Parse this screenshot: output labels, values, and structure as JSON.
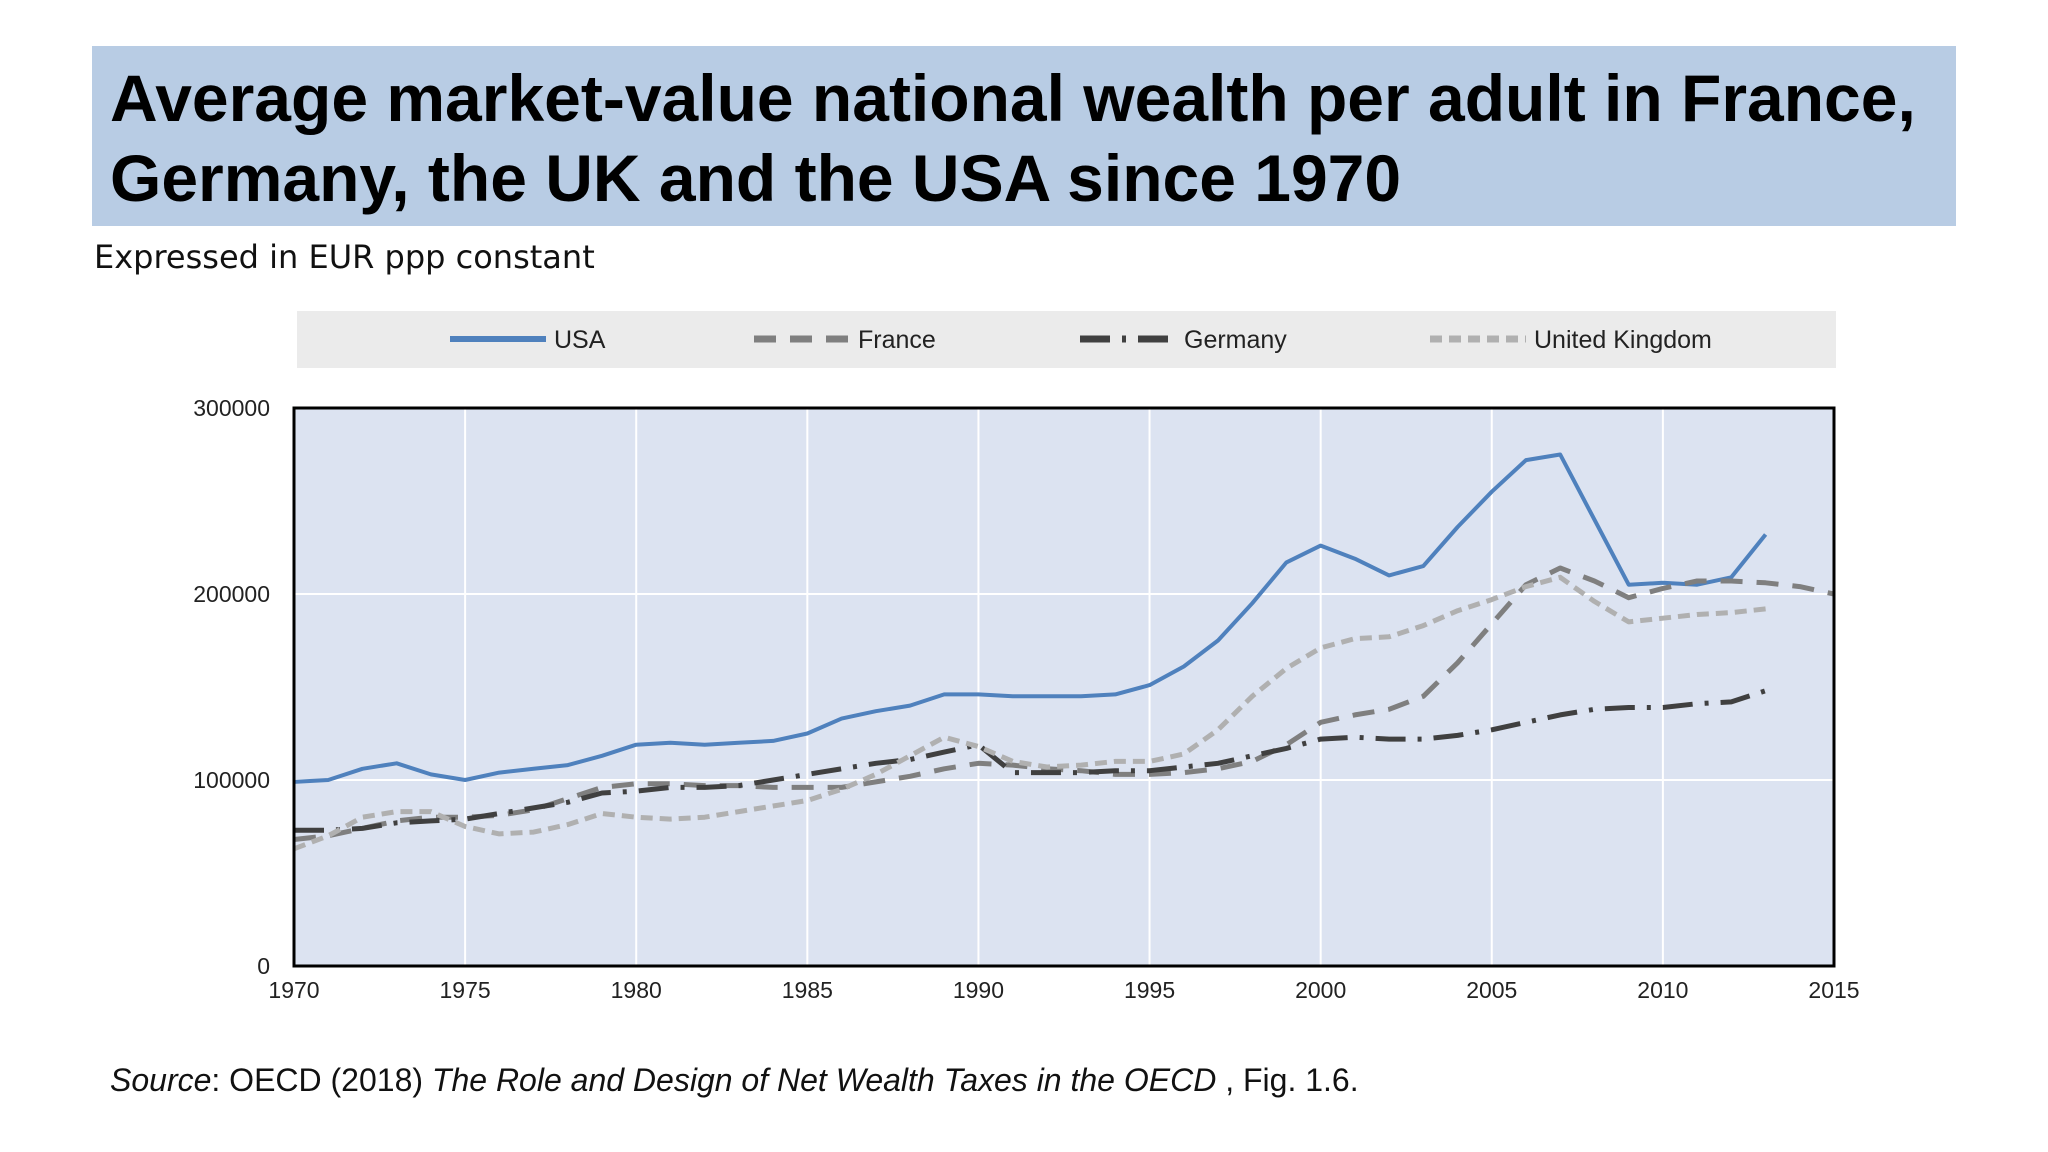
{
  "title": "Average market-value national wealth per adult in France, Germany, the UK and the USA since 1970",
  "subtitle": "Expressed in EUR ppp constant",
  "source": {
    "label": "Source",
    "text_1": ": OECD (2018) ",
    "publication": "The Role and Design of Net Wealth Taxes in the OECD",
    "text_2": " , Fig. 1.6."
  },
  "colors": {
    "title_bg": "#b8cce4",
    "plot_bg": "#dce3f1",
    "legend_bg": "#ebebeb",
    "usa": "#4f81bd",
    "france": "#7f7f7f",
    "germany": "#404040",
    "uk": "#b0b0b0"
  },
  "chart_data": {
    "type": "line",
    "title": "",
    "xlabel": "",
    "ylabel": "",
    "xlim": [
      1970,
      2015
    ],
    "ylim": [
      0,
      300000
    ],
    "x_ticks": [
      1970,
      1975,
      1980,
      1985,
      1990,
      1995,
      2000,
      2005,
      2010,
      2015
    ],
    "y_ticks": [
      0,
      100000,
      200000,
      300000
    ],
    "grid": true,
    "legend_position": "top",
    "series": [
      {
        "name": "USA",
        "style": "solid",
        "color": "#4f81bd",
        "points": [
          [
            1970,
            99000
          ],
          [
            1971,
            100000
          ],
          [
            1972,
            106000
          ],
          [
            1973,
            109000
          ],
          [
            1974,
            103000
          ],
          [
            1975,
            100000
          ],
          [
            1976,
            104000
          ],
          [
            1977,
            106000
          ],
          [
            1978,
            108000
          ],
          [
            1979,
            113000
          ],
          [
            1980,
            119000
          ],
          [
            1981,
            120000
          ],
          [
            1982,
            119000
          ],
          [
            1983,
            120000
          ],
          [
            1984,
            121000
          ],
          [
            1985,
            125000
          ],
          [
            1986,
            133000
          ],
          [
            1987,
            137000
          ],
          [
            1988,
            140000
          ],
          [
            1989,
            146000
          ],
          [
            1990,
            146000
          ],
          [
            1991,
            145000
          ],
          [
            1992,
            145000
          ],
          [
            1993,
            145000
          ],
          [
            1994,
            146000
          ],
          [
            1995,
            151000
          ],
          [
            1996,
            161000
          ],
          [
            1997,
            175000
          ],
          [
            1998,
            195000
          ],
          [
            1999,
            217000
          ],
          [
            2000,
            226000
          ],
          [
            2001,
            219000
          ],
          [
            2002,
            210000
          ],
          [
            2003,
            215000
          ],
          [
            2004,
            236000
          ],
          [
            2005,
            255000
          ],
          [
            2006,
            272000
          ],
          [
            2007,
            275000
          ],
          [
            2008,
            240000
          ],
          [
            2009,
            205000
          ],
          [
            2010,
            206000
          ],
          [
            2011,
            205000
          ],
          [
            2012,
            209000
          ],
          [
            2013,
            232000
          ]
        ]
      },
      {
        "name": "France",
        "style": "dashed",
        "color": "#7f7f7f",
        "points": [
          [
            1970,
            68000
          ],
          [
            1971,
            70000
          ],
          [
            1972,
            74000
          ],
          [
            1973,
            78000
          ],
          [
            1974,
            80000
          ],
          [
            1975,
            80000
          ],
          [
            1976,
            81000
          ],
          [
            1977,
            84000
          ],
          [
            1978,
            90000
          ],
          [
            1979,
            96000
          ],
          [
            1980,
            98000
          ],
          [
            1981,
            98000
          ],
          [
            1982,
            97000
          ],
          [
            1983,
            97000
          ],
          [
            1984,
            96000
          ],
          [
            1985,
            96000
          ],
          [
            1986,
            96000
          ],
          [
            1987,
            99000
          ],
          [
            1988,
            102000
          ],
          [
            1989,
            106000
          ],
          [
            1990,
            109000
          ],
          [
            1991,
            108000
          ],
          [
            1992,
            106000
          ],
          [
            1993,
            105000
          ],
          [
            1994,
            103000
          ],
          [
            1995,
            103000
          ],
          [
            1996,
            104000
          ],
          [
            1997,
            106000
          ],
          [
            1998,
            110000
          ],
          [
            1999,
            119000
          ],
          [
            2000,
            131000
          ],
          [
            2001,
            135000
          ],
          [
            2002,
            138000
          ],
          [
            2003,
            145000
          ],
          [
            2004,
            163000
          ],
          [
            2005,
            184000
          ],
          [
            2006,
            205000
          ],
          [
            2007,
            214000
          ],
          [
            2008,
            207000
          ],
          [
            2009,
            198000
          ],
          [
            2010,
            203000
          ],
          [
            2011,
            207000
          ],
          [
            2012,
            207000
          ],
          [
            2013,
            206000
          ],
          [
            2014,
            204000
          ],
          [
            2015,
            200000
          ]
        ]
      },
      {
        "name": "Germany",
        "style": "dashdot",
        "color": "#404040",
        "points": [
          [
            1970,
            73000
          ],
          [
            1971,
            73000
          ],
          [
            1972,
            74000
          ],
          [
            1973,
            77000
          ],
          [
            1974,
            78000
          ],
          [
            1975,
            79000
          ],
          [
            1976,
            82000
          ],
          [
            1977,
            85000
          ],
          [
            1978,
            88000
          ],
          [
            1979,
            93000
          ],
          [
            1980,
            94000
          ],
          [
            1981,
            96000
          ],
          [
            1982,
            96000
          ],
          [
            1983,
            97000
          ],
          [
            1984,
            100000
          ],
          [
            1985,
            103000
          ],
          [
            1986,
            106000
          ],
          [
            1987,
            109000
          ],
          [
            1988,
            111000
          ],
          [
            1989,
            115000
          ],
          [
            1990,
            119000
          ],
          [
            1991,
            104000
          ],
          [
            1992,
            104000
          ],
          [
            1993,
            104000
          ],
          [
            1994,
            105000
          ],
          [
            1995,
            105000
          ],
          [
            1996,
            107000
          ],
          [
            1997,
            109000
          ],
          [
            1998,
            113000
          ],
          [
            1999,
            117000
          ],
          [
            2000,
            122000
          ],
          [
            2001,
            123000
          ],
          [
            2002,
            122000
          ],
          [
            2003,
            122000
          ],
          [
            2004,
            124000
          ],
          [
            2005,
            127000
          ],
          [
            2006,
            131000
          ],
          [
            2007,
            135000
          ],
          [
            2008,
            138000
          ],
          [
            2009,
            139000
          ],
          [
            2010,
            139000
          ],
          [
            2011,
            141000
          ],
          [
            2012,
            142000
          ],
          [
            2013,
            148000
          ]
        ]
      },
      {
        "name": "United Kingdom",
        "style": "dotted",
        "color": "#b0b0b0",
        "points": [
          [
            1970,
            63000
          ],
          [
            1971,
            70000
          ],
          [
            1972,
            80000
          ],
          [
            1973,
            83000
          ],
          [
            1974,
            83000
          ],
          [
            1975,
            75000
          ],
          [
            1976,
            71000
          ],
          [
            1977,
            72000
          ],
          [
            1978,
            76000
          ],
          [
            1979,
            82000
          ],
          [
            1980,
            80000
          ],
          [
            1981,
            79000
          ],
          [
            1982,
            80000
          ],
          [
            1983,
            83000
          ],
          [
            1984,
            86000
          ],
          [
            1985,
            89000
          ],
          [
            1986,
            95000
          ],
          [
            1987,
            103000
          ],
          [
            1988,
            113000
          ],
          [
            1989,
            123000
          ],
          [
            1990,
            118000
          ],
          [
            1991,
            110000
          ],
          [
            1992,
            107000
          ],
          [
            1993,
            108000
          ],
          [
            1994,
            110000
          ],
          [
            1995,
            110000
          ],
          [
            1996,
            114000
          ],
          [
            1997,
            127000
          ],
          [
            1998,
            145000
          ],
          [
            1999,
            160000
          ],
          [
            2000,
            171000
          ],
          [
            2001,
            176000
          ],
          [
            2002,
            177000
          ],
          [
            2003,
            183000
          ],
          [
            2004,
            191000
          ],
          [
            2005,
            197000
          ],
          [
            2006,
            204000
          ],
          [
            2007,
            209000
          ],
          [
            2008,
            196000
          ],
          [
            2009,
            185000
          ],
          [
            2010,
            187000
          ],
          [
            2011,
            189000
          ],
          [
            2012,
            190000
          ],
          [
            2013,
            192000
          ]
        ]
      }
    ]
  }
}
